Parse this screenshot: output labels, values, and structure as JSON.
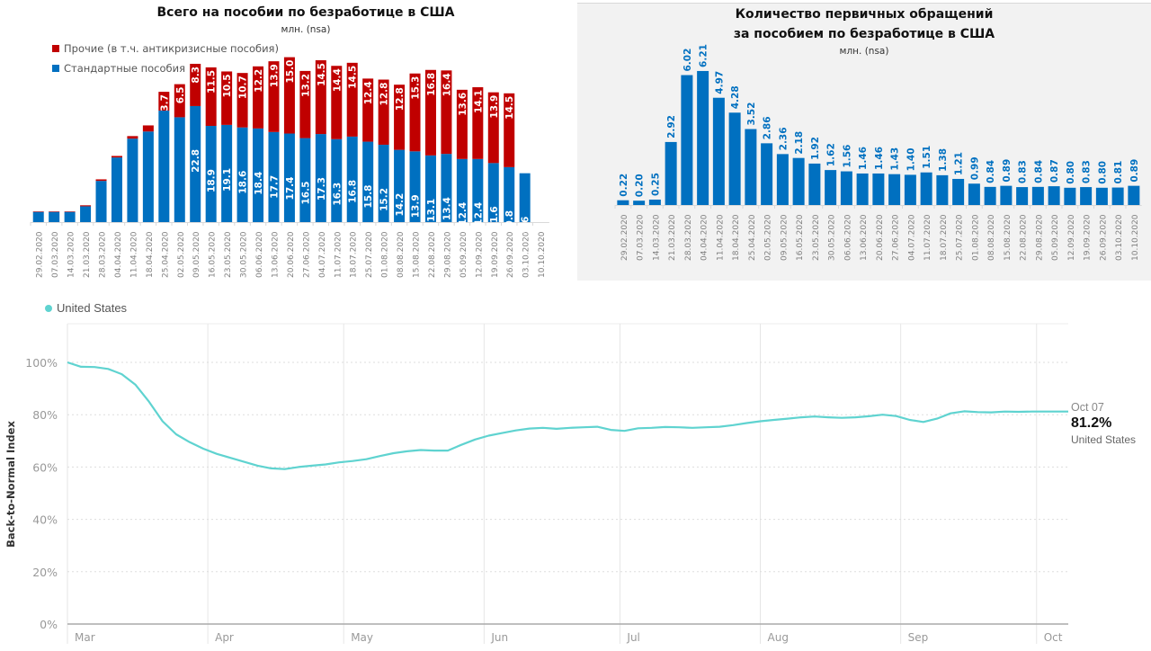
{
  "chart_data": [
    {
      "type": "bar",
      "stacked": true,
      "title": "Всего на пособии по безработице в США",
      "subtitle": "млн. (nsa)",
      "xlabel": "",
      "ylabel": "",
      "legend_position": "top-left",
      "categories": [
        "29.02.2020",
        "07.03.2020",
        "14.03.2020",
        "21.03.2020",
        "28.03.2020",
        "04.04.2020",
        "11.04.2020",
        "18.04.2020",
        "25.04.2020",
        "02.05.2020",
        "09.05.2020",
        "16.05.2020",
        "23.05.2020",
        "30.05.2020",
        "06.06.2020",
        "13.06.2020",
        "20.06.2020",
        "27.06.2020",
        "04.07.2020",
        "11.07.2020",
        "18.07.2020",
        "25.07.2020",
        "01.08.2020",
        "08.08.2020",
        "15.08.2020",
        "22.08.2020",
        "29.08.2020",
        "05.09.2020",
        "12.09.2020",
        "19.09.2020",
        "26.09.2020",
        "03.10.2020",
        "10.10.2020"
      ],
      "series": [
        {
          "name": "Стандартные пособия",
          "color": "#0070c0",
          "values": [
            2.0,
            2.0,
            2.0,
            3.1,
            8.1,
            12.7,
            16.4,
            17.8,
            21.9,
            20.6,
            22.8,
            18.9,
            19.1,
            18.6,
            18.4,
            17.7,
            17.4,
            16.5,
            17.3,
            16.3,
            16.8,
            15.8,
            15.2,
            14.2,
            13.9,
            13.1,
            13.4,
            12.4,
            12.4,
            11.6,
            10.8,
            9.6,
            null
          ],
          "labels": [
            null,
            null,
            null,
            null,
            null,
            null,
            null,
            null,
            null,
            null,
            "22.8",
            "18.9",
            "19.1",
            "18.6",
            "18.4",
            "17.7",
            "17.4",
            "16.5",
            "17.3",
            "16.3",
            "16.8",
            "15.8",
            "15.2",
            "14.2",
            "13.9",
            "13.1",
            "13.4",
            "12.4",
            "12.4",
            "11.6",
            "10.8",
            "9.6",
            null
          ]
        },
        {
          "name": "Прочие (в т.ч. антикризисные пособия)",
          "color": "#c00000",
          "values": [
            0.1,
            0.1,
            0.1,
            0.2,
            0.3,
            0.3,
            0.5,
            1.2,
            3.7,
            6.5,
            8.3,
            11.5,
            10.5,
            10.7,
            12.2,
            13.9,
            15.0,
            13.2,
            14.5,
            14.4,
            14.5,
            12.4,
            12.8,
            12.8,
            15.3,
            16.8,
            16.4,
            13.6,
            14.1,
            13.9,
            14.5,
            null,
            null
          ],
          "labels": [
            null,
            null,
            null,
            null,
            null,
            null,
            null,
            null,
            "3.7",
            "6.5",
            "8.3",
            "11.5",
            "10.5",
            "10.7",
            "12.2",
            "13.9",
            "15.0",
            "13.2",
            "14.5",
            "14.4",
            "14.5",
            "12.4",
            "12.8",
            "12.8",
            "15.3",
            "16.8",
            "16.4",
            "13.6",
            "14.1",
            "13.9",
            "14.5",
            null,
            null
          ]
        }
      ],
      "ylim": [
        0,
        33
      ]
    },
    {
      "type": "bar",
      "title": "Количество первичных обращений за пособием по безработице в США",
      "title_lines": [
        "Количество первичных обращений",
        "за пособием по безработице в США"
      ],
      "subtitle": "млн. (nsa)",
      "xlabel": "",
      "ylabel": "",
      "color": "#0070c0",
      "categories": [
        "29.02.2020",
        "07.03.2020",
        "14.03.2020",
        "21.03.2020",
        "28.03.2020",
        "04.04.2020",
        "11.04.2020",
        "18.04.2020",
        "25.04.2020",
        "02.05.2020",
        "09.05.2020",
        "16.05.2020",
        "23.05.2020",
        "30.05.2020",
        "06.06.2020",
        "13.06.2020",
        "20.06.2020",
        "27.06.2020",
        "04.07.2020",
        "11.07.2020",
        "18.07.2020",
        "25.07.2020",
        "01.08.2020",
        "08.08.2020",
        "15.08.2020",
        "22.08.2020",
        "29.08.2020",
        "05.09.2020",
        "12.09.2020",
        "19.09.2020",
        "26.09.2020",
        "03.10.2020",
        "10.10.2020"
      ],
      "values": [
        0.22,
        0.2,
        0.25,
        2.92,
        6.02,
        6.21,
        4.97,
        4.28,
        3.52,
        2.86,
        2.36,
        2.18,
        1.92,
        1.62,
        1.56,
        1.46,
        1.46,
        1.43,
        1.4,
        1.51,
        1.38,
        1.21,
        0.99,
        0.84,
        0.89,
        0.83,
        0.84,
        0.87,
        0.8,
        0.83,
        0.8,
        0.81,
        0.89
      ],
      "labels": [
        "0.22",
        "0.20",
        "0.25",
        "2.92",
        "6.02",
        "6.21",
        "4.97",
        "4.28",
        "3.52",
        "2.86",
        "2.36",
        "2.18",
        "1.92",
        "1.62",
        "1.56",
        "1.46",
        "1.46",
        "1.43",
        "1.40",
        "1.51",
        "1.38",
        "1.21",
        "0.99",
        "0.84",
        "0.89",
        "0.83",
        "0.84",
        "0.87",
        "0.80",
        "0.83",
        "0.80",
        "0.81",
        "0.89"
      ],
      "ylim": [
        0,
        7.5
      ]
    },
    {
      "type": "line",
      "title": "",
      "xlabel": "",
      "ylabel": "Back-to-Normal Index",
      "legend": [
        "United States"
      ],
      "legend_position": "top-left",
      "color": "#5fd3d0",
      "grid": true,
      "x_tick_labels": [
        "Mar",
        "Apr",
        "May",
        "Jun",
        "Jul",
        "Aug",
        "Sep",
        "Oct"
      ],
      "y_tick_labels": [
        "0%",
        "20%",
        "40%",
        "60%",
        "80%",
        "100%"
      ],
      "ylim": [
        0,
        100
      ],
      "xlim_days": [
        0,
        221
      ],
      "series": [
        {
          "name": "United States",
          "x_days": [
            0,
            3,
            6,
            9,
            12,
            15,
            18,
            21,
            24,
            27,
            30,
            33,
            36,
            39,
            42,
            45,
            48,
            51,
            54,
            57,
            60,
            63,
            66,
            69,
            72,
            75,
            78,
            81,
            84,
            87,
            90,
            93,
            96,
            99,
            102,
            105,
            108,
            111,
            114,
            117,
            120,
            123,
            126,
            129,
            132,
            135,
            138,
            141,
            144,
            147,
            150,
            153,
            156,
            159,
            162,
            165,
            168,
            171,
            174,
            177,
            180,
            183,
            186,
            189,
            192,
            195,
            198,
            201,
            204,
            207,
            210,
            213,
            216,
            221
          ],
          "values": [
            100,
            98.3,
            98.2,
            97.5,
            95.5,
            91.5,
            85,
            77.5,
            72.5,
            69.5,
            67,
            65,
            63.5,
            62,
            60.5,
            59.5,
            59.2,
            60,
            60.5,
            61,
            61.8,
            62.3,
            63,
            64.2,
            65.3,
            66,
            66.5,
            66.3,
            66.3,
            68.5,
            70.5,
            72,
            73,
            74,
            74.7,
            75,
            74.6,
            75,
            75.2,
            75.4,
            74.2,
            73.8,
            74.8,
            75,
            75.3,
            75.2,
            75,
            75.2,
            75.4,
            76,
            76.8,
            77.5,
            78,
            78.5,
            79,
            79.3,
            79,
            78.8,
            79,
            79.4,
            80,
            79.5,
            78,
            77.2,
            78.5,
            80.5,
            81.3,
            81,
            80.9,
            81.2,
            81.1,
            81.2,
            81.2,
            81.2
          ]
        }
      ],
      "annotation": {
        "date": "Oct 07",
        "value": "81.2%",
        "series": "United States"
      }
    }
  ]
}
